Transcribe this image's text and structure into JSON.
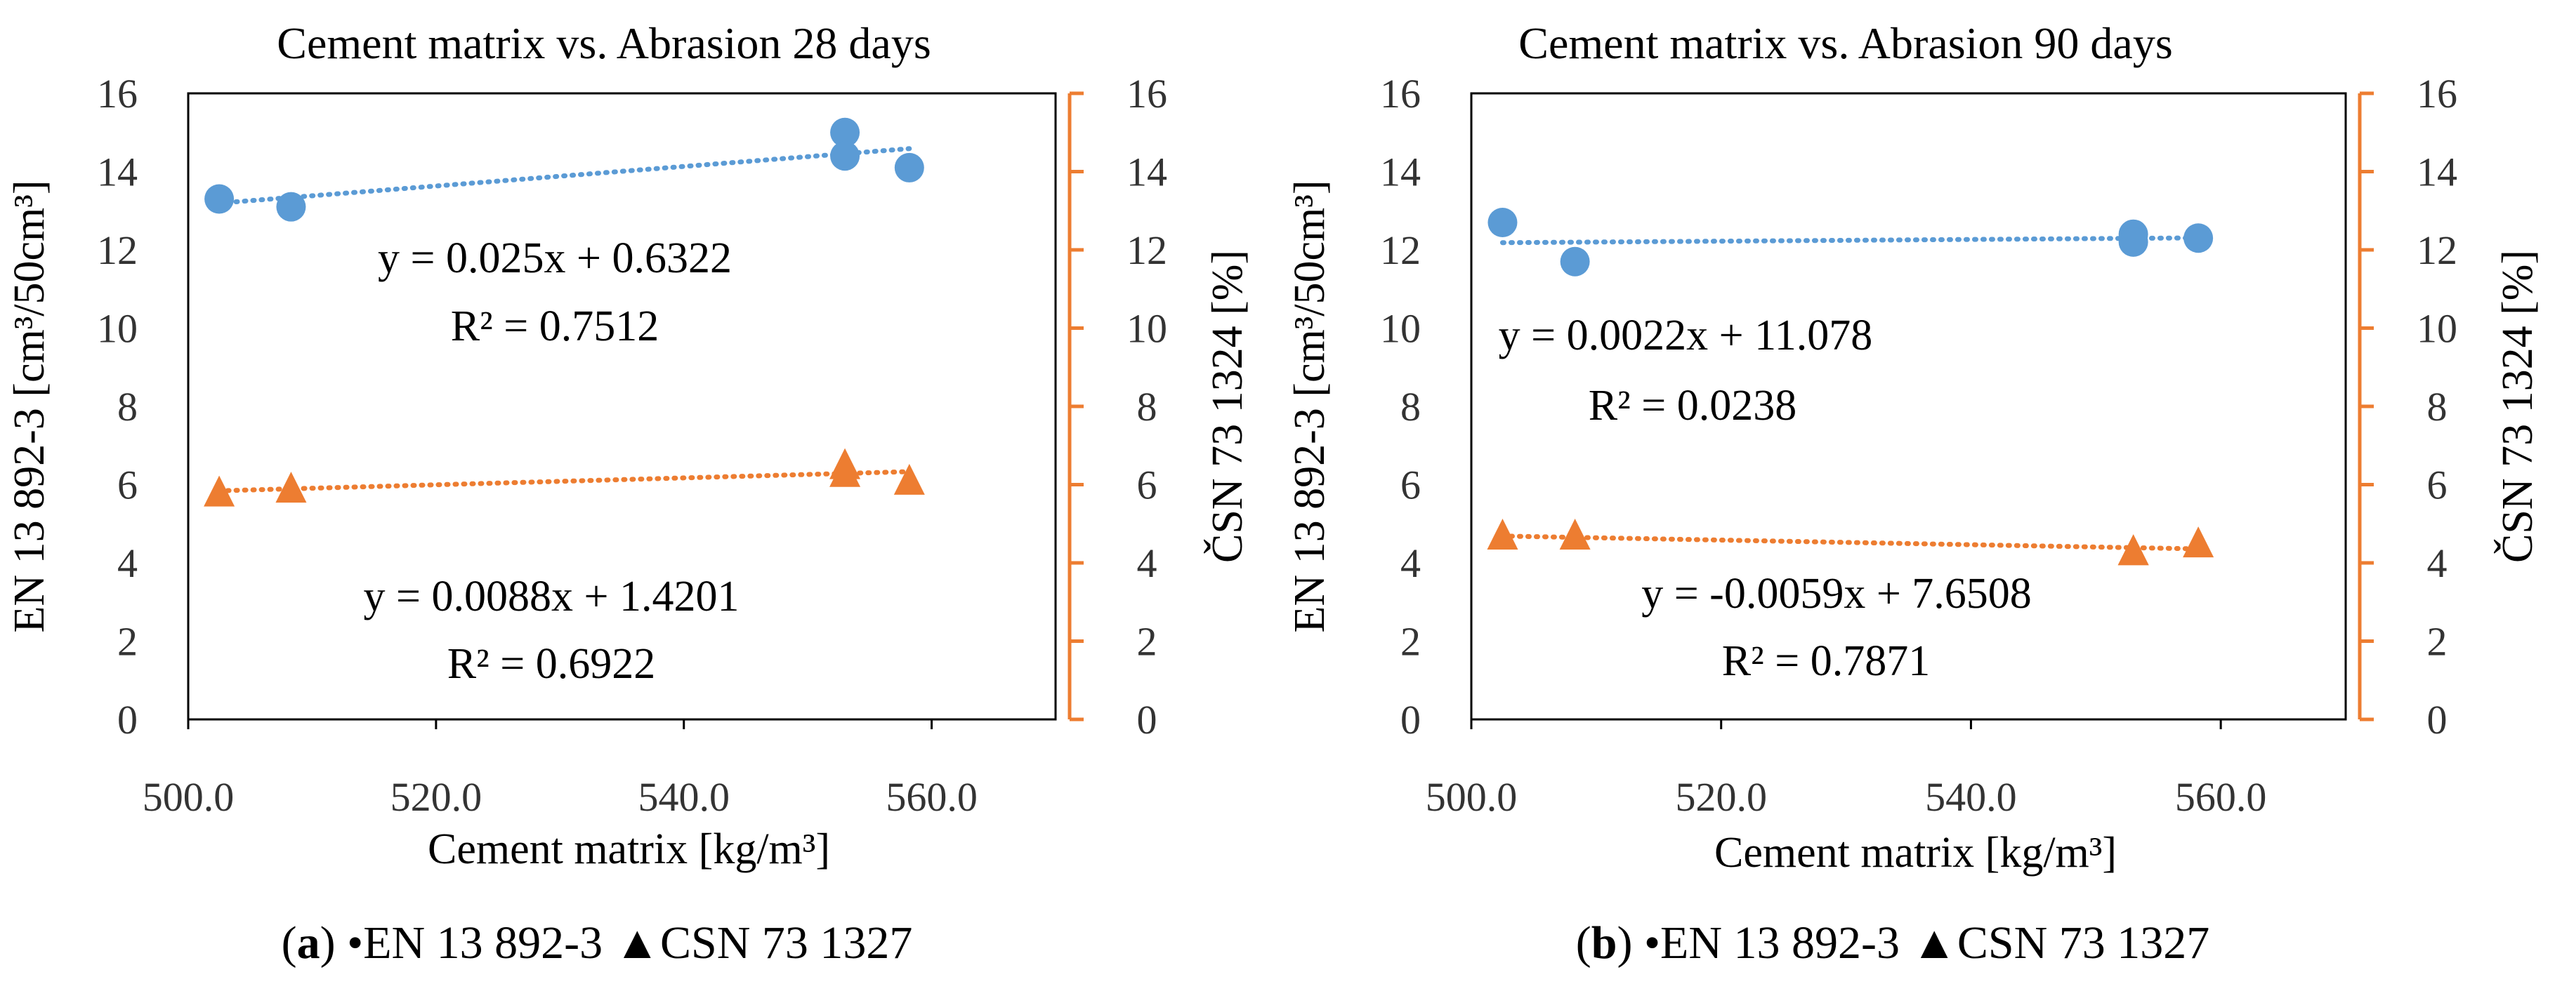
{
  "chart_data": [
    {
      "type": "scatter",
      "title": "Cement matrix vs. Abrasion 28 days",
      "xlabel": "Cement matrix [kg/m³]",
      "ylabel_left": "EN 13 892-3 [cm³/50cm³]",
      "ylabel_right": "ČSN 73 1324 [%]",
      "xlim": [
        500,
        570
      ],
      "xticks": [
        "500.0",
        "520.0",
        "540.0",
        "560.0"
      ],
      "ylim": [
        0,
        16
      ],
      "yticks": [
        "0",
        "2",
        "4",
        "6",
        "8",
        "10",
        "12",
        "14",
        "16"
      ],
      "series": [
        {
          "name": "EN 13 892-3",
          "marker": "circle",
          "color": "#5B9BD5",
          "axis": "left",
          "points": [
            [
              502.5,
              13.3
            ],
            [
              508.3,
              13.1
            ],
            [
              553.0,
              15.0
            ],
            [
              553.0,
              14.4
            ],
            [
              558.2,
              14.1
            ]
          ],
          "trend": {
            "slope": 0.025,
            "intercept": 0.6322,
            "x_range": [
              502.5,
              558.2
            ]
          },
          "equation": "y = 0.025x + 0.6322",
          "r2": "R² = 0.7512"
        },
        {
          "name": "CSN 73 1327",
          "marker": "triangle",
          "color": "#ED7D31",
          "axis": "right",
          "points": [
            [
              502.5,
              5.8
            ],
            [
              508.3,
              5.9
            ],
            [
              553.0,
              6.5
            ],
            [
              553.0,
              6.3
            ],
            [
              558.2,
              6.1
            ]
          ],
          "trend": {
            "slope": 0.0088,
            "intercept": 1.4201,
            "x_range": [
              502.5,
              558.2
            ]
          },
          "equation": "y = 0.0088x + 1.4201",
          "r2": "R² = 0.6922"
        }
      ],
      "caption": {
        "label": "(a)",
        "legend": "•EN 13 892-3 ▲CSN 73 1327"
      }
    },
    {
      "type": "scatter",
      "title": "Cement matrix vs. Abrasion 90 days",
      "xlabel": "Cement matrix [kg/m³]",
      "ylabel_left": "EN 13 892-3 [cm³/50cm³]",
      "ylabel_right": "ČSN 73 1324 [%]",
      "xlim": [
        500,
        570
      ],
      "xticks": [
        "500.0",
        "520.0",
        "540.0",
        "560.0"
      ],
      "ylim": [
        0,
        16
      ],
      "yticks": [
        "0",
        "2",
        "4",
        "6",
        "8",
        "10",
        "12",
        "14",
        "16"
      ],
      "series": [
        {
          "name": "EN 13 892-3",
          "marker": "circle",
          "color": "#5B9BD5",
          "axis": "left",
          "points": [
            [
              502.5,
              12.7
            ],
            [
              508.3,
              11.7
            ],
            [
              553.0,
              12.4
            ],
            [
              553.0,
              12.2
            ],
            [
              558.2,
              12.3
            ]
          ],
          "trend": {
            "slope": 0.0022,
            "intercept": 11.078,
            "x_range": [
              502.5,
              558.2
            ]
          },
          "equation": "y = 0.0022x + 11.078",
          "r2": "R² = 0.0238"
        },
        {
          "name": "CSN 73 1327",
          "marker": "triangle",
          "color": "#ED7D31",
          "axis": "right",
          "points": [
            [
              502.5,
              4.7
            ],
            [
              508.3,
              4.7
            ],
            [
              553.0,
              4.3
            ],
            [
              553.0,
              4.3
            ],
            [
              558.2,
              4.5
            ]
          ],
          "trend": {
            "slope": -0.0059,
            "intercept": 7.6508,
            "x_range": [
              502.5,
              558.2
            ]
          },
          "equation": "y = -0.0059x + 7.6508",
          "r2": "R² = 0.7871"
        }
      ],
      "caption": {
        "label": "(b)",
        "legend": "•EN 13 892-3 ▲CSN 73 1327"
      }
    }
  ]
}
